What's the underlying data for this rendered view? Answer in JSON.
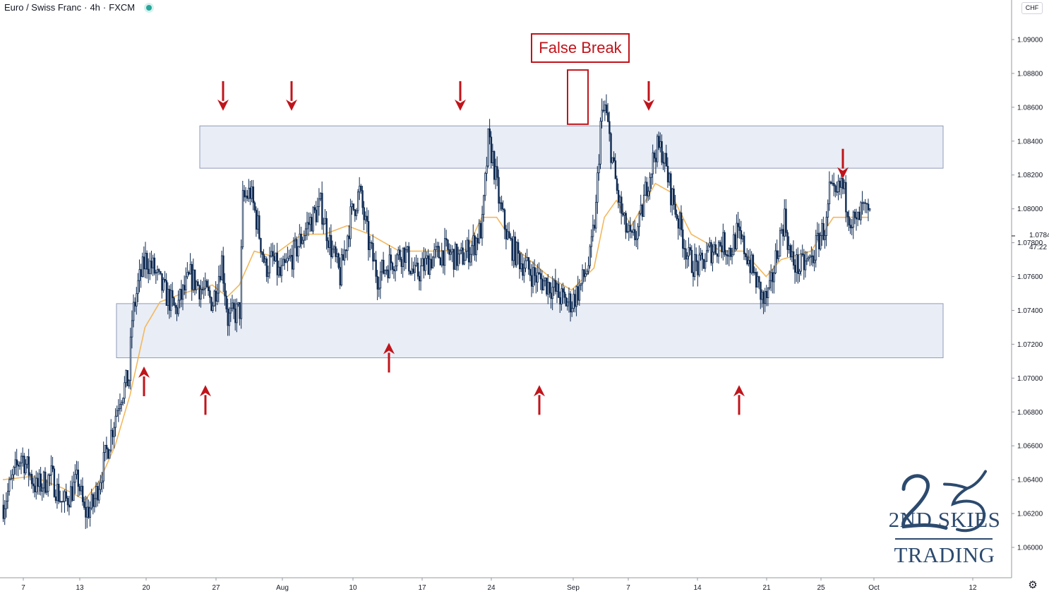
{
  "header": {
    "symbol": "Euro / Swiss Franc",
    "interval": "4h",
    "exchange": "FXCM"
  },
  "currency_badge": "CHF",
  "annotation_label": "False Break",
  "last_price_label": "1.07840",
  "countdown_label": "47:22",
  "logo": {
    "line1": "2ND SKIES",
    "line2": "TRADING",
    "mark": "25"
  },
  "colors": {
    "candle": "#0e2a52",
    "ma": "#f3b85d",
    "zone_fill": "#e9edf5",
    "zone_border": "#8f9bb8",
    "arrow": "#c0141b",
    "logo": "#2c4a6e"
  },
  "chart_data": {
    "type": "candlestick",
    "title": "Euro / Swiss Franc",
    "interval": "4h",
    "ylim": [
      1.059,
      1.093
    ],
    "y_ticks": [
      "1.06000",
      "1.06200",
      "1.06400",
      "1.06600",
      "1.06800",
      "1.07000",
      "1.07200",
      "1.07400",
      "1.07600",
      "1.07800",
      "1.08000",
      "1.08200",
      "1.08400",
      "1.08600",
      "1.08800",
      "1.09000"
    ],
    "x_ticks": [
      "7",
      "13",
      "20",
      "27",
      "Aug",
      "10",
      "17",
      "24",
      "Sep",
      "7",
      "14",
      "21",
      "25",
      "Oct",
      "12"
    ],
    "close_keypoints": [
      [
        0,
        1.0625
      ],
      [
        12,
        1.0655
      ],
      [
        22,
        1.0635
      ],
      [
        32,
        1.0642
      ],
      [
        40,
        1.0625
      ],
      [
        50,
        1.064
      ],
      [
        54,
        1.062
      ],
      [
        60,
        1.0625
      ],
      [
        70,
        1.066
      ],
      [
        78,
        1.069
      ],
      [
        84,
        1.07
      ],
      [
        86,
        1.0735
      ],
      [
        90,
        1.0755
      ],
      [
        95,
        1.077
      ],
      [
        100,
        1.0765
      ],
      [
        105,
        1.0755
      ],
      [
        115,
        1.074
      ],
      [
        125,
        1.076
      ],
      [
        135,
        1.075
      ],
      [
        140,
        1.0745
      ],
      [
        146,
        1.077
      ],
      [
        150,
        1.0735
      ],
      [
        158,
        1.074
      ],
      [
        160,
        1.0805
      ],
      [
        165,
        1.081
      ],
      [
        170,
        1.079
      ],
      [
        175,
        1.0765
      ],
      [
        180,
        1.077
      ],
      [
        185,
        1.076
      ],
      [
        195,
        1.0775
      ],
      [
        203,
        1.079
      ],
      [
        212,
        1.0802
      ],
      [
        218,
        1.078
      ],
      [
        225,
        1.076
      ],
      [
        232,
        1.0795
      ],
      [
        238,
        1.081
      ],
      [
        244,
        1.078
      ],
      [
        250,
        1.076
      ],
      [
        260,
        1.077
      ],
      [
        268,
        1.0775
      ],
      [
        275,
        1.076
      ],
      [
        285,
        1.077
      ],
      [
        295,
        1.0775
      ],
      [
        305,
        1.077
      ],
      [
        315,
        1.078
      ],
      [
        320,
        1.079
      ],
      [
        324,
        1.084
      ],
      [
        327,
        1.083
      ],
      [
        332,
        1.08
      ],
      [
        338,
        1.078
      ],
      [
        345,
        1.077
      ],
      [
        355,
        1.076
      ],
      [
        365,
        1.0755
      ],
      [
        375,
        1.0745
      ],
      [
        380,
        1.0745
      ],
      [
        386,
        1.0755
      ],
      [
        392,
        1.077
      ],
      [
        396,
        1.08
      ],
      [
        399,
        1.085
      ],
      [
        402,
        1.086
      ],
      [
        406,
        1.0835
      ],
      [
        410,
        1.081
      ],
      [
        415,
        1.079
      ],
      [
        420,
        1.078
      ],
      [
        425,
        1.079
      ],
      [
        430,
        1.0815
      ],
      [
        436,
        1.0835
      ],
      [
        440,
        1.0835
      ],
      [
        446,
        1.081
      ],
      [
        452,
        1.079
      ],
      [
        458,
        1.077
      ],
      [
        465,
        1.0765
      ],
      [
        472,
        1.0775
      ],
      [
        480,
        1.078
      ],
      [
        486,
        1.0775
      ],
      [
        490,
        1.0785
      ],
      [
        496,
        1.0775
      ],
      [
        502,
        1.076
      ],
      [
        508,
        1.0745
      ],
      [
        512,
        1.075
      ],
      [
        518,
        1.078
      ],
      [
        522,
        1.0795
      ],
      [
        526,
        1.077
      ],
      [
        532,
        1.0765
      ],
      [
        540,
        1.077
      ],
      [
        546,
        1.0785
      ],
      [
        550,
        1.079
      ],
      [
        552,
        1.081
      ],
      [
        556,
        1.0805
      ],
      [
        560,
        1.0815
      ],
      [
        566,
        1.0795
      ],
      [
        570,
        1.079
      ],
      [
        574,
        1.08
      ],
      [
        578,
        1.0795
      ]
    ],
    "ma_keypoints": [
      [
        0,
        1.064
      ],
      [
        20,
        1.0642
      ],
      [
        40,
        1.0635
      ],
      [
        55,
        1.0628
      ],
      [
        65,
        1.064
      ],
      [
        75,
        1.066
      ],
      [
        85,
        1.069
      ],
      [
        95,
        1.073
      ],
      [
        105,
        1.0745
      ],
      [
        120,
        1.075
      ],
      [
        140,
        1.0755
      ],
      [
        150,
        1.0748
      ],
      [
        158,
        1.0755
      ],
      [
        168,
        1.0775
      ],
      [
        180,
        1.0772
      ],
      [
        200,
        1.0785
      ],
      [
        215,
        1.0785
      ],
      [
        230,
        1.079
      ],
      [
        245,
        1.0785
      ],
      [
        265,
        1.0775
      ],
      [
        290,
        1.0775
      ],
      [
        310,
        1.0776
      ],
      [
        320,
        1.0795
      ],
      [
        330,
        1.0795
      ],
      [
        345,
        1.0775
      ],
      [
        365,
        1.076
      ],
      [
        380,
        1.0752
      ],
      [
        395,
        1.0765
      ],
      [
        402,
        1.0795
      ],
      [
        410,
        1.0805
      ],
      [
        420,
        1.079
      ],
      [
        436,
        1.0815
      ],
      [
        446,
        1.081
      ],
      [
        460,
        1.0785
      ],
      [
        480,
        1.0775
      ],
      [
        495,
        1.0775
      ],
      [
        510,
        1.076
      ],
      [
        520,
        1.077
      ],
      [
        540,
        1.0775
      ],
      [
        555,
        1.0795
      ],
      [
        570,
        1.0795
      ],
      [
        578,
        1.0795
      ]
    ],
    "candle_count": 580,
    "resistance_zone": [
      1.0824,
      1.0849
    ],
    "support_zone": [
      1.0712,
      1.0744
    ],
    "down_arrows": [
      [
        316,
        1.086
      ],
      [
        413,
        1.086
      ],
      [
        652,
        1.086
      ],
      [
        919,
        1.086
      ],
      [
        1194,
        1.082
      ]
    ],
    "up_arrows": [
      [
        204,
        1.0701
      ],
      [
        291,
        1.069
      ],
      [
        551,
        1.0715
      ],
      [
        764,
        1.069
      ],
      [
        1047,
        1.069
      ]
    ],
    "false_break_box": [
      1.085,
      1.0882
    ]
  }
}
